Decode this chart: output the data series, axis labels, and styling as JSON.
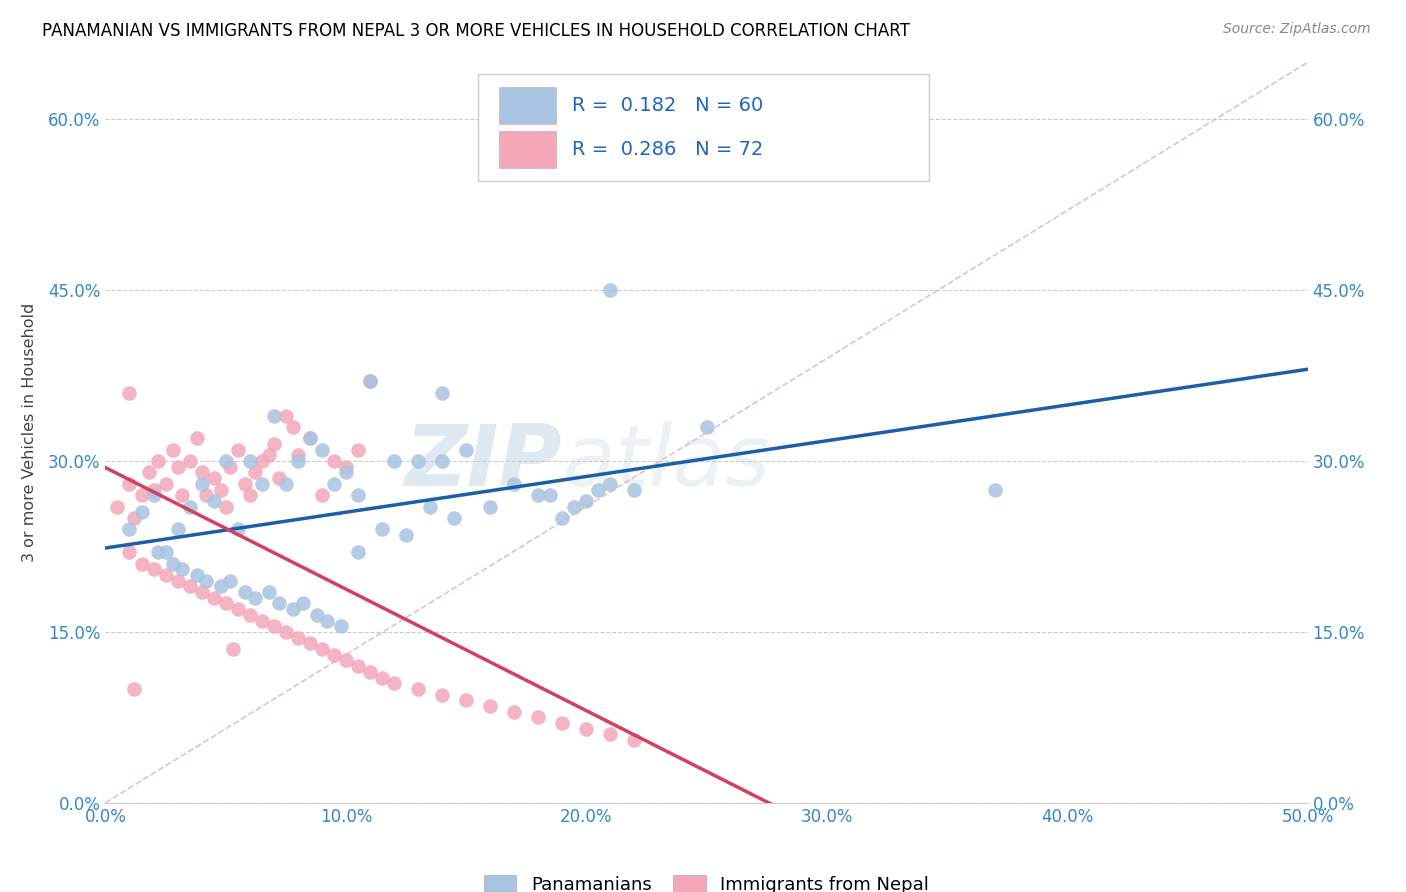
{
  "title": "PANAMANIAN VS IMMIGRANTS FROM NEPAL 3 OR MORE VEHICLES IN HOUSEHOLD CORRELATION CHART",
  "source": "Source: ZipAtlas.com",
  "ylabel": "3 or more Vehicles in Household",
  "x_min": 0.0,
  "x_max": 50.0,
  "y_min": 0.0,
  "y_max": 65.0,
  "x_ticks": [
    0.0,
    10.0,
    20.0,
    30.0,
    40.0,
    50.0
  ],
  "x_tick_labels": [
    "0.0%",
    "10.0%",
    "20.0%",
    "30.0%",
    "40.0%",
    "50.0%"
  ],
  "y_ticks": [
    0.0,
    15.0,
    30.0,
    45.0,
    60.0
  ],
  "y_tick_labels": [
    "0.0%",
    "15.0%",
    "30.0%",
    "45.0%",
    "60.0%"
  ],
  "blue_R": 0.182,
  "blue_N": 60,
  "pink_R": 0.286,
  "pink_N": 72,
  "blue_color": "#a8c4e0",
  "pink_color": "#f4a7b9",
  "blue_line_color": "#1a5fa8",
  "pink_line_color": "#d44060",
  "diag_line_color": "#e0b0ba",
  "watermark_zip": "ZIP",
  "watermark_atlas": "atlas",
  "legend_label_blue": "Panamanians",
  "legend_label_pink": "Immigrants from Nepal",
  "blue_x": [
    2.0,
    2.5,
    3.0,
    3.5,
    4.0,
    4.5,
    5.0,
    5.5,
    6.0,
    6.5,
    7.0,
    7.5,
    8.0,
    8.5,
    9.0,
    9.5,
    10.0,
    10.5,
    11.0,
    12.0,
    13.0,
    14.0,
    15.0,
    16.0,
    17.0,
    18.0,
    19.0,
    20.0,
    21.0,
    22.0,
    1.0,
    1.5,
    2.2,
    2.8,
    3.2,
    3.8,
    4.2,
    4.8,
    5.2,
    5.8,
    6.2,
    6.8,
    7.2,
    7.8,
    8.2,
    8.8,
    9.2,
    9.8,
    10.5,
    11.5,
    12.5,
    13.5,
    14.5,
    18.5,
    19.5,
    20.5,
    14.0,
    21.0,
    37.0,
    25.0
  ],
  "blue_y": [
    27.0,
    22.0,
    24.0,
    26.0,
    28.0,
    26.5,
    30.0,
    24.0,
    30.0,
    28.0,
    34.0,
    28.0,
    30.0,
    32.0,
    31.0,
    28.0,
    29.0,
    27.0,
    37.0,
    30.0,
    30.0,
    30.0,
    31.0,
    26.0,
    28.0,
    27.0,
    25.0,
    26.5,
    28.0,
    27.5,
    24.0,
    25.5,
    22.0,
    21.0,
    20.5,
    20.0,
    19.5,
    19.0,
    19.5,
    18.5,
    18.0,
    18.5,
    17.5,
    17.0,
    17.5,
    16.5,
    16.0,
    15.5,
    22.0,
    24.0,
    23.5,
    26.0,
    25.0,
    27.0,
    26.0,
    27.5,
    36.0,
    45.0,
    27.5,
    33.0
  ],
  "pink_x": [
    0.5,
    1.0,
    1.2,
    1.5,
    1.8,
    2.0,
    2.2,
    2.5,
    2.8,
    3.0,
    3.2,
    3.5,
    3.8,
    4.0,
    4.2,
    4.5,
    4.8,
    5.0,
    5.2,
    5.5,
    5.8,
    6.0,
    6.2,
    6.5,
    6.8,
    7.0,
    7.2,
    7.5,
    7.8,
    8.0,
    8.5,
    9.0,
    9.5,
    10.0,
    10.5,
    11.0,
    1.0,
    1.5,
    2.0,
    2.5,
    3.0,
    3.5,
    4.0,
    4.5,
    5.0,
    5.5,
    6.0,
    6.5,
    7.0,
    7.5,
    8.0,
    8.5,
    9.0,
    9.5,
    10.0,
    10.5,
    11.0,
    11.5,
    12.0,
    13.0,
    14.0,
    15.0,
    16.0,
    17.0,
    18.0,
    19.0,
    20.0,
    21.0,
    22.0,
    5.3,
    1.0,
    1.2
  ],
  "pink_y": [
    26.0,
    28.0,
    25.0,
    27.0,
    29.0,
    27.5,
    30.0,
    28.0,
    31.0,
    29.5,
    27.0,
    30.0,
    32.0,
    29.0,
    27.0,
    28.5,
    27.5,
    26.0,
    29.5,
    31.0,
    28.0,
    27.0,
    29.0,
    30.0,
    30.5,
    31.5,
    28.5,
    34.0,
    33.0,
    30.5,
    32.0,
    27.0,
    30.0,
    29.5,
    31.0,
    37.0,
    22.0,
    21.0,
    20.5,
    20.0,
    19.5,
    19.0,
    18.5,
    18.0,
    17.5,
    17.0,
    16.5,
    16.0,
    15.5,
    15.0,
    14.5,
    14.0,
    13.5,
    13.0,
    12.5,
    12.0,
    11.5,
    11.0,
    10.5,
    10.0,
    9.5,
    9.0,
    8.5,
    8.0,
    7.5,
    7.0,
    6.5,
    6.0,
    5.5,
    13.5,
    36.0,
    10.0
  ]
}
